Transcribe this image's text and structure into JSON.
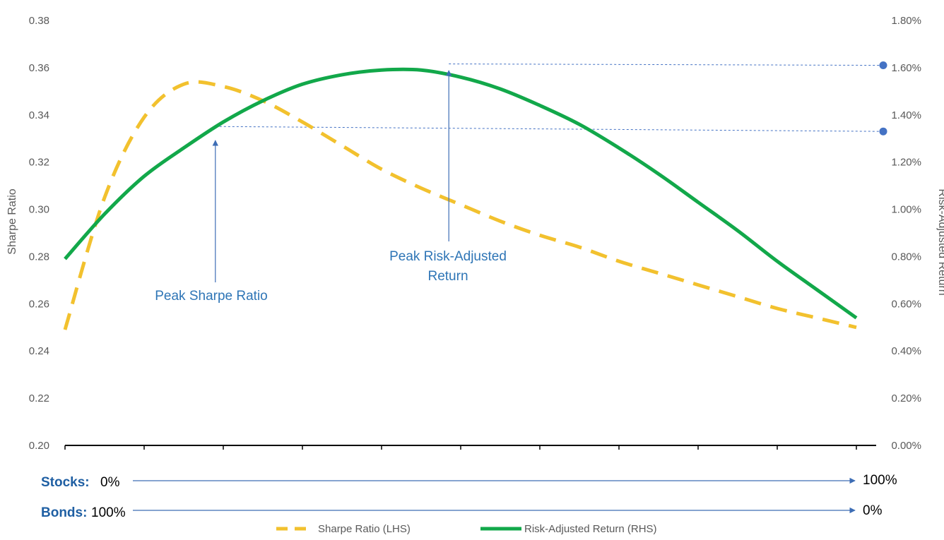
{
  "chart_data": {
    "type": "line",
    "xlabel": "",
    "x": [
      0,
      0.05,
      0.1,
      0.15,
      0.2,
      0.25,
      0.3,
      0.35,
      0.4,
      0.45,
      0.5,
      0.55,
      0.6,
      0.65,
      0.7,
      0.75,
      0.8,
      0.85,
      0.9,
      0.95,
      1.0
    ],
    "left_axis": {
      "label": "Sharpe Ratio",
      "ylim": [
        0.2,
        0.38
      ],
      "ticks": [
        "0.20",
        "0.22",
        "0.24",
        "0.26",
        "0.28",
        "0.30",
        "0.32",
        "0.34",
        "0.36",
        "0.38"
      ]
    },
    "right_axis": {
      "label": "Risk-Adjusted Return",
      "ylim": [
        0.0,
        1.8
      ],
      "ticks": [
        "0.00%",
        "0.20%",
        "0.40%",
        "0.60%",
        "0.80%",
        "1.00%",
        "1.20%",
        "1.40%",
        "1.60%",
        "1.80%"
      ]
    },
    "series": [
      {
        "name": "Sharpe Ratio (LHS)",
        "axis": "left",
        "color": "#f2c12e",
        "style": "dashed",
        "values": [
          0.249,
          0.305,
          0.339,
          0.353,
          0.352,
          0.346,
          0.337,
          0.327,
          0.317,
          0.309,
          0.302,
          0.295,
          0.289,
          0.284,
          0.278,
          0.273,
          0.268,
          0.263,
          0.258,
          0.254,
          0.25
        ]
      },
      {
        "name": "Risk-Adjusted Return (RHS)",
        "axis": "right",
        "color": "#12a84a",
        "style": "solid",
        "values": [
          0.79,
          0.98,
          1.14,
          1.26,
          1.37,
          1.46,
          1.53,
          1.57,
          1.59,
          1.59,
          1.56,
          1.51,
          1.44,
          1.36,
          1.26,
          1.15,
          1.03,
          0.91,
          0.78,
          0.66,
          0.54
        ]
      }
    ],
    "reference_points": [
      {
        "value": 1.61,
        "color": "#4472c4"
      },
      {
        "value": 1.33,
        "color": "#4472c4"
      }
    ],
    "annotations": [
      {
        "lines": [
          "Peak Sharpe Ratio"
        ],
        "x": 0.19
      },
      {
        "lines": [
          "Peak Risk-Adjusted",
          "Return"
        ],
        "x": 0.485
      }
    ],
    "allocation": {
      "stocks_label": "Stocks:",
      "stocks_start": "0%",
      "stocks_end": "100%",
      "bonds_label": "Bonds:",
      "bonds_start": "100%",
      "bonds_end": "0%"
    },
    "legend_position": "bottom"
  }
}
